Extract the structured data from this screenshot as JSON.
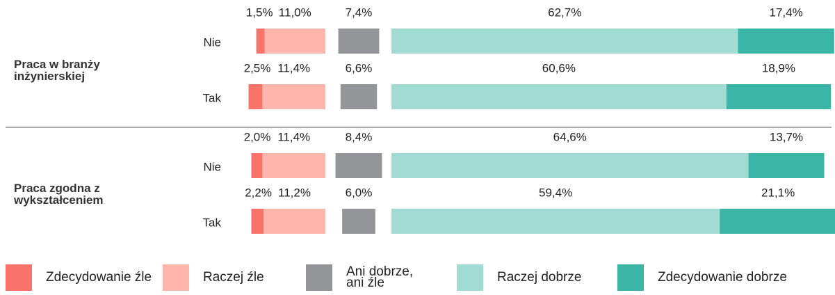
{
  "chart_data": {
    "type": "diverging-bar",
    "groups": [
      "Praca w branży inżynierskiej",
      "Praca zgodna z wykształceniem"
    ],
    "categories": [
      "Nie",
      "Tak",
      "Nie",
      "Tak"
    ],
    "series": [
      {
        "name": "Zdecydowanie źle",
        "color": "#f87369",
        "side": "negative",
        "values": [
          1.5,
          2.5,
          2.0,
          2.2
        ],
        "value_labels": [
          "1,5%",
          "2,5%",
          "2,0%",
          "2,2%"
        ]
      },
      {
        "name": "Raczej źle",
        "color": "#fdb5ac",
        "side": "negative",
        "values": [
          11.0,
          11.4,
          11.4,
          11.2
        ],
        "value_labels": [
          "11,0%",
          "11,4%",
          "11,4%",
          "11,2%"
        ]
      },
      {
        "name": "Ani dobrze, ani źle",
        "color": "#939598",
        "side": "neutral",
        "values": [
          7.4,
          6.6,
          8.4,
          6.0
        ],
        "value_labels": [
          "7,4%",
          "6,6%",
          "8,4%",
          "6,0%"
        ]
      },
      {
        "name": "Raczej dobrze",
        "color": "#a0dcd4",
        "side": "positive",
        "values": [
          62.7,
          60.6,
          64.6,
          59.4
        ],
        "value_labels": [
          "62,7%",
          "60,6%",
          "64,6%",
          "59,4%"
        ]
      },
      {
        "name": "Zdecydowanie dobrze",
        "color": "#3bb6a6",
        "side": "positive",
        "values": [
          17.4,
          18.9,
          13.7,
          21.1
        ],
        "value_labels": [
          "17,4%",
          "18,9%",
          "13,7%",
          "21,1%"
        ]
      }
    ]
  }
}
